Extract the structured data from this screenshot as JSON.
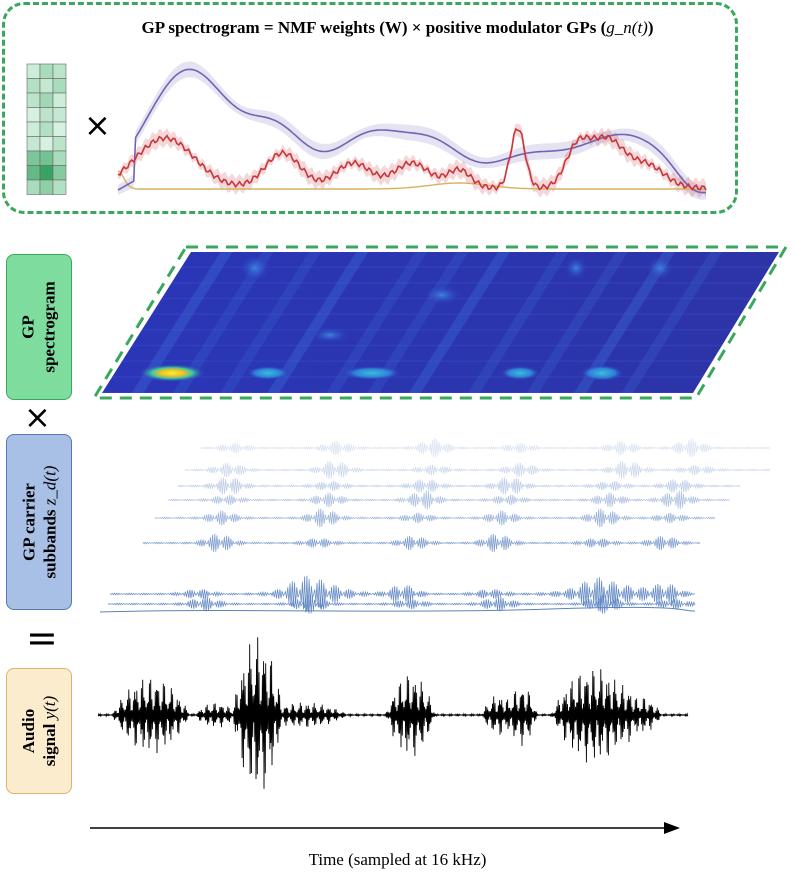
{
  "title": {
    "prefix": "GP spectrogram = NMF weights (W) × positive modulator GPs (",
    "var": "g_n(t)",
    "suffix": ")"
  },
  "labels": {
    "spectrogram": [
      "GP",
      "spectrogram"
    ],
    "carrier": [
      "GP carrier",
      "subbands"
    ],
    "carrier_var": "z_d(t)",
    "audio": [
      "Audio",
      "signal"
    ],
    "audio_var": "y(t)"
  },
  "operators": {
    "times": "×",
    "equals": "="
  },
  "axis": {
    "time_label": "Time (sampled at 16 kHz)"
  },
  "colors": {
    "green": "#3aa85c",
    "purple": "#7064b4",
    "red": "#c8363c",
    "orange": "#d8b060",
    "spec_low": "#2830a8",
    "spec_high": "#f0e040",
    "carrier": "#5a82c0",
    "audio": "#000000"
  },
  "icons": {
    "times": "multiply-icon",
    "equals": "equals-icon"
  }
}
